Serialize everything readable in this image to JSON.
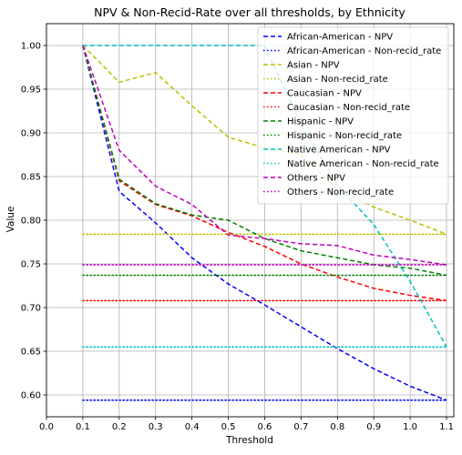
{
  "chart_data": {
    "type": "line",
    "title": "NPV & Non-Recid-Rate over all thresholds, by Ethnicity",
    "xlabel": "Threshold",
    "ylabel": "Value",
    "xlim": [
      0.0,
      1.12
    ],
    "ylim": [
      0.575,
      1.025
    ],
    "xticks": [
      "0.0",
      "0.1",
      "0.2",
      "0.3",
      "0.4",
      "0.5",
      "0.6",
      "0.7",
      "0.8",
      "0.9",
      "1.0",
      "1.1"
    ],
    "yticks": [
      "0.60",
      "0.65",
      "0.70",
      "0.75",
      "0.80",
      "0.85",
      "0.90",
      "0.95",
      "1.00"
    ],
    "grid": true,
    "legend_position": "top-right",
    "x": [
      0.1,
      0.2,
      0.3,
      0.4,
      0.5,
      0.6,
      0.7,
      0.8,
      0.9,
      1.0,
      1.1
    ],
    "series": [
      {
        "name": "African-American - NPV",
        "style": "dashed",
        "color": "#0000ff",
        "values": [
          1.0,
          0.833,
          0.797,
          0.757,
          0.727,
          0.703,
          0.678,
          0.653,
          0.63,
          0.61,
          0.594
        ]
      },
      {
        "name": "African-American - Non-recid_rate",
        "style": "dotted",
        "color": "#0000ff",
        "values": [
          0.594,
          0.594,
          0.594,
          0.594,
          0.594,
          0.594,
          0.594,
          0.594,
          0.594,
          0.594,
          0.594
        ]
      },
      {
        "name": "Asian - NPV",
        "style": "dashed",
        "color": "#bfbf00",
        "values": [
          1.0,
          0.958,
          0.969,
          0.931,
          0.895,
          0.883,
          0.875,
          0.835,
          0.815,
          0.8,
          0.784
        ]
      },
      {
        "name": "Asian - Non-recid_rate",
        "style": "dotted",
        "color": "#bfbf00",
        "values": [
          0.784,
          0.784,
          0.784,
          0.784,
          0.784,
          0.784,
          0.784,
          0.784,
          0.784,
          0.784,
          0.784
        ]
      },
      {
        "name": "Caucasian - NPV",
        "style": "dashed",
        "color": "#ff0000",
        "values": [
          1.0,
          0.845,
          0.818,
          0.805,
          0.786,
          0.77,
          0.75,
          0.735,
          0.722,
          0.714,
          0.708
        ]
      },
      {
        "name": "Caucasian - Non-recid_rate",
        "style": "dotted",
        "color": "#ff0000",
        "values": [
          0.708,
          0.708,
          0.708,
          0.708,
          0.708,
          0.708,
          0.708,
          0.708,
          0.708,
          0.708,
          0.708
        ]
      },
      {
        "name": "Hispanic - NPV",
        "style": "dashed",
        "color": "#008000",
        "values": [
          1.0,
          0.847,
          0.819,
          0.806,
          0.8,
          0.779,
          0.765,
          0.757,
          0.749,
          0.745,
          0.737
        ]
      },
      {
        "name": "Hispanic - Non-recid_rate",
        "style": "dotted",
        "color": "#008000",
        "values": [
          0.737,
          0.737,
          0.737,
          0.737,
          0.737,
          0.737,
          0.737,
          0.737,
          0.737,
          0.737,
          0.737
        ]
      },
      {
        "name": "Native American - NPV",
        "style": "dashed",
        "color": "#00bfbf",
        "values": [
          1.0,
          1.0,
          1.0,
          1.0,
          1.0,
          1.0,
          0.91,
          0.84,
          0.795,
          0.73,
          0.655
        ]
      },
      {
        "name": "Native American - Non-recid_rate",
        "style": "dotted",
        "color": "#00bfbf",
        "values": [
          0.655,
          0.655,
          0.655,
          0.655,
          0.655,
          0.655,
          0.655,
          0.655,
          0.655,
          0.655,
          0.655
        ]
      },
      {
        "name": "Others - NPV",
        "style": "dashed",
        "color": "#bf00bf",
        "values": [
          1.0,
          0.88,
          0.839,
          0.818,
          0.783,
          0.779,
          0.773,
          0.771,
          0.76,
          0.755,
          0.749
        ]
      },
      {
        "name": "Others - Non-recid_rate",
        "style": "dotted",
        "color": "#bf00bf",
        "values": [
          0.749,
          0.749,
          0.749,
          0.749,
          0.749,
          0.749,
          0.749,
          0.749,
          0.749,
          0.749,
          0.749
        ]
      }
    ]
  }
}
